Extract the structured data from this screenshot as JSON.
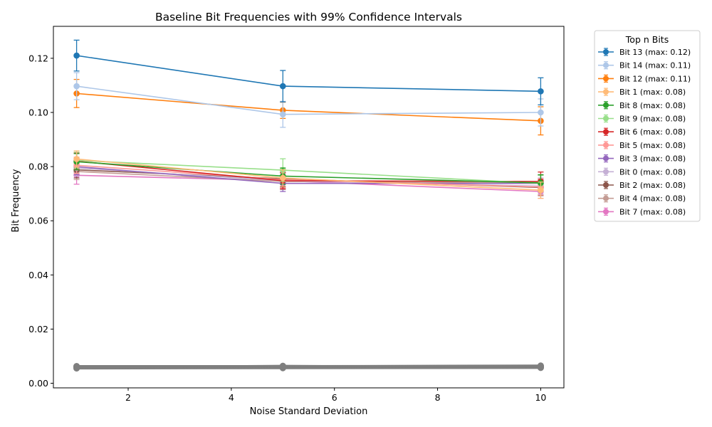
{
  "chart_data": {
    "type": "line",
    "title": "Baseline Bit Frequencies with 99% Confidence Intervals",
    "xlabel": "Noise Standard Deviation",
    "ylabel": "Bit Frequency",
    "xlim": [
      0.55,
      10.45
    ],
    "ylim": [
      -0.0017,
      0.1318
    ],
    "xticks": [
      2,
      4,
      6,
      8,
      10
    ],
    "yticks": [
      0.0,
      0.02,
      0.04,
      0.06,
      0.08,
      0.1,
      0.12
    ],
    "ytick_labels": [
      "0.00",
      "0.02",
      "0.04",
      "0.06",
      "0.08",
      "0.10",
      "0.12"
    ],
    "grid": false,
    "x": [
      1,
      5,
      10
    ],
    "legend": {
      "title": "Top n Bits",
      "placement": "outside-right"
    },
    "series": [
      {
        "name": "Bit 13 (max: 0.12)",
        "color": "#1f77b4",
        "values": [
          0.121,
          0.1097,
          0.1078
        ],
        "err": [
          0.0057,
          0.0058,
          0.005
        ]
      },
      {
        "name": "Bit 14 (max: 0.11)",
        "color": "#aec7e8",
        "values": [
          0.1097,
          0.0993,
          0.1
        ],
        "err": [
          0.005,
          0.0048,
          0.005
        ]
      },
      {
        "name": "Bit 12 (max: 0.11)",
        "color": "#ff7f0e",
        "values": [
          0.107,
          0.1008,
          0.0969
        ],
        "err": [
          0.0052,
          0.003,
          0.0052
        ]
      },
      {
        "name": "Bit 1 (max: 0.08)",
        "color": "#ffbb78",
        "values": [
          0.0828,
          0.0758,
          0.0713
        ],
        "err": [
          0.003,
          0.003,
          0.003
        ]
      },
      {
        "name": "Bit 8 (max: 0.08)",
        "color": "#2ca02c",
        "values": [
          0.0818,
          0.0765,
          0.074
        ],
        "err": [
          0.003,
          0.003,
          0.003
        ]
      },
      {
        "name": "Bit 9 (max: 0.08)",
        "color": "#98df8a",
        "values": [
          0.0823,
          0.0787,
          0.0738
        ],
        "err": [
          0.003,
          0.0042,
          0.003
        ]
      },
      {
        "name": "Bit 6 (max: 0.08)",
        "color": "#d62728",
        "values": [
          0.082,
          0.0748,
          0.0745
        ],
        "err": [
          0.003,
          0.003,
          0.0035
        ]
      },
      {
        "name": "Bit 5 (max: 0.08)",
        "color": "#ff9896",
        "values": [
          0.0805,
          0.0752,
          0.0725
        ],
        "err": [
          0.003,
          0.003,
          0.003
        ]
      },
      {
        "name": "Bit 3 (max: 0.08)",
        "color": "#9467bd",
        "values": [
          0.08,
          0.0738,
          0.0738
        ],
        "err": [
          0.003,
          0.003,
          0.003
        ]
      },
      {
        "name": "Bit 0 (max: 0.08)",
        "color": "#c5b0d5",
        "values": [
          0.0795,
          0.0748,
          0.0728
        ],
        "err": [
          0.003,
          0.003,
          0.003
        ]
      },
      {
        "name": "Bit 2 (max: 0.08)",
        "color": "#8c564b",
        "values": [
          0.0788,
          0.0755,
          0.0723
        ],
        "err": [
          0.003,
          0.003,
          0.003
        ]
      },
      {
        "name": "Bit 4 (max: 0.08)",
        "color": "#c49c94",
        "values": [
          0.0782,
          0.0745,
          0.074
        ],
        "err": [
          0.003,
          0.003,
          0.003
        ]
      },
      {
        "name": "Bit 7 (max: 0.08)",
        "color": "#e377c2",
        "values": [
          0.0768,
          0.0748,
          0.0708
        ],
        "err": [
          0.0033,
          0.003,
          0.0025
        ]
      }
    ],
    "background_series": {
      "color": "#7f7f7f",
      "count": 8,
      "values": [
        [
          0.0063,
          0.0063,
          0.0065
        ],
        [
          0.0062,
          0.006,
          0.0061
        ],
        [
          0.006,
          0.0061,
          0.006
        ],
        [
          0.0058,
          0.0062,
          0.0062
        ],
        [
          0.0057,
          0.0058,
          0.0059
        ],
        [
          0.0055,
          0.0056,
          0.0057
        ],
        [
          0.0061,
          0.0059,
          0.0063
        ],
        [
          0.0059,
          0.0064,
          0.0058
        ]
      ]
    }
  }
}
